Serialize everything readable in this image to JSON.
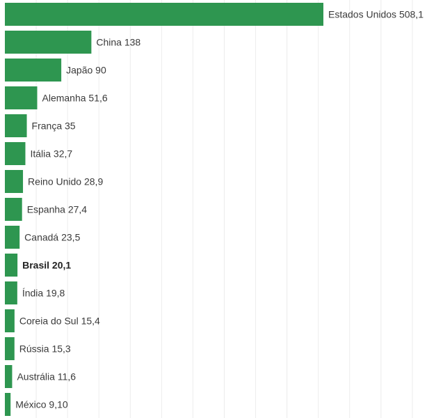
{
  "chart_data": {
    "type": "bar",
    "orientation": "horizontal",
    "categories": [
      "Estados Unidos",
      "China",
      "Japão",
      "Alemanha",
      "França",
      "Itália",
      "Reino Unido",
      "Espanha",
      "Canadá",
      "Brasil",
      "Índia",
      "Coreia do Sul",
      "Rússia",
      "Austrália",
      "México"
    ],
    "values": [
      508.1,
      138,
      90,
      51.6,
      35,
      32.7,
      28.9,
      27.4,
      23.5,
      20.1,
      19.8,
      15.4,
      15.3,
      11.6,
      9.1
    ],
    "data_labels": [
      "Estados Unidos 508,1",
      "China 138",
      "Japão 90",
      "Alemanha 51,6",
      "França 35",
      "Itália 32,7",
      "Reino Unido 28,9",
      "Espanha 27,4",
      "Canadá 23,5",
      "Brasil 20,1",
      "Índia 19,8",
      "Coreia do Sul 15,4",
      "Rússia 15,3",
      "Austrália 11,6",
      "México 9,10"
    ],
    "highlighted_category": "Brasil",
    "title": "",
    "xlabel": "",
    "ylabel": "",
    "xlim": [
      0,
      670
    ],
    "grid": true,
    "legend": "none",
    "colors": {
      "bar": "#2e9650",
      "grid": "#ececec",
      "label": "#3a3a3a"
    }
  }
}
